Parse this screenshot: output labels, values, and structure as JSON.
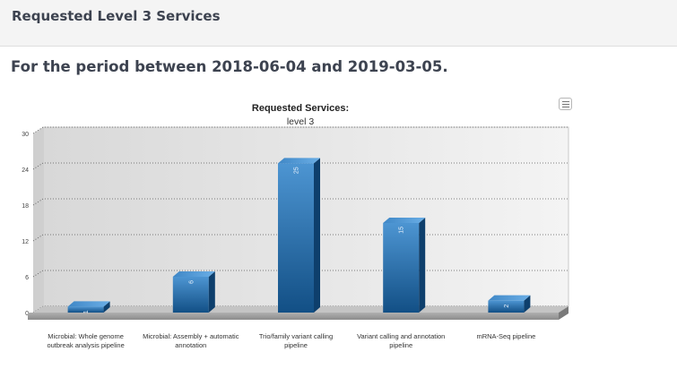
{
  "header": {
    "title": "Requested Level 3 Services"
  },
  "period": {
    "text": "For the period between 2018-06-04 and 2019-03-05."
  },
  "chart_menu": {
    "icon": "hamburger-menu-icon"
  },
  "chart_data": {
    "type": "bar",
    "title": "Requested Services:",
    "subtitle": "level 3",
    "categories": [
      [
        "Microbial: Whole genome",
        "outbreak analysis pipeline"
      ],
      [
        "Microbial: Assembly + automatic",
        "annotation"
      ],
      [
        "Trio/family variant calling",
        "pipeline"
      ],
      [
        "Variant calling and annotation",
        "pipeline"
      ],
      [
        "mRNA-Seq pipeline"
      ]
    ],
    "values": [
      1,
      6,
      25,
      15,
      2
    ],
    "ylim": [
      0,
      30
    ],
    "yticks": [
      0,
      6,
      12,
      18,
      24,
      30
    ],
    "grid": true,
    "legend": "none",
    "bar_color": "#1f6ba8"
  }
}
